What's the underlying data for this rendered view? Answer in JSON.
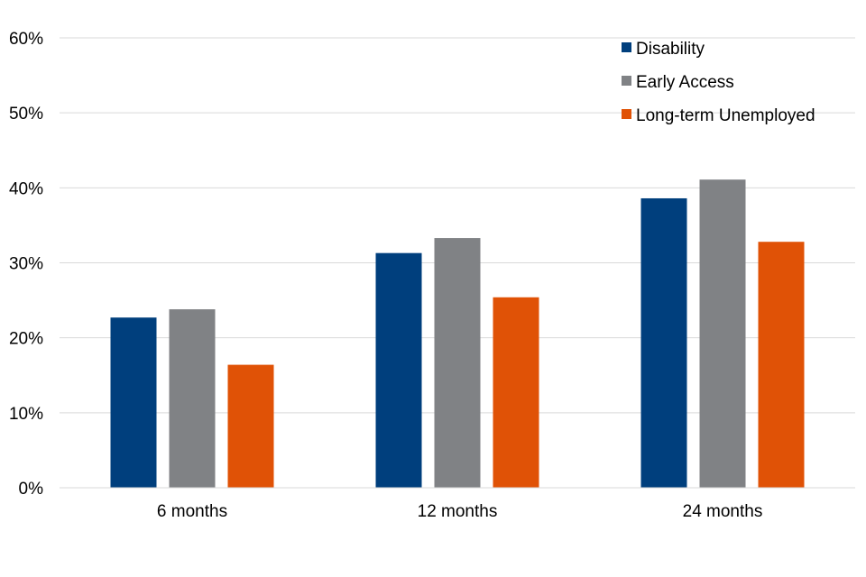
{
  "chart_data": {
    "type": "bar",
    "categories": [
      "6 months",
      "12 months",
      "24 months"
    ],
    "series": [
      {
        "name": "Disability",
        "values": [
          22.7,
          31.3,
          38.6
        ],
        "color": "#003F7D"
      },
      {
        "name": "Early Access",
        "values": [
          23.8,
          33.3,
          41.1
        ],
        "color": "#808285"
      },
      {
        "name": "Long-term Unemployed",
        "values": [
          16.4,
          25.4,
          32.8
        ],
        "color": "#E05206"
      }
    ],
    "yticks": [
      "0%",
      "10%",
      "20%",
      "30%",
      "40%",
      "50%",
      "60%"
    ],
    "ylim": [
      0,
      60
    ],
    "grid": true,
    "legend_position": "top-right"
  }
}
